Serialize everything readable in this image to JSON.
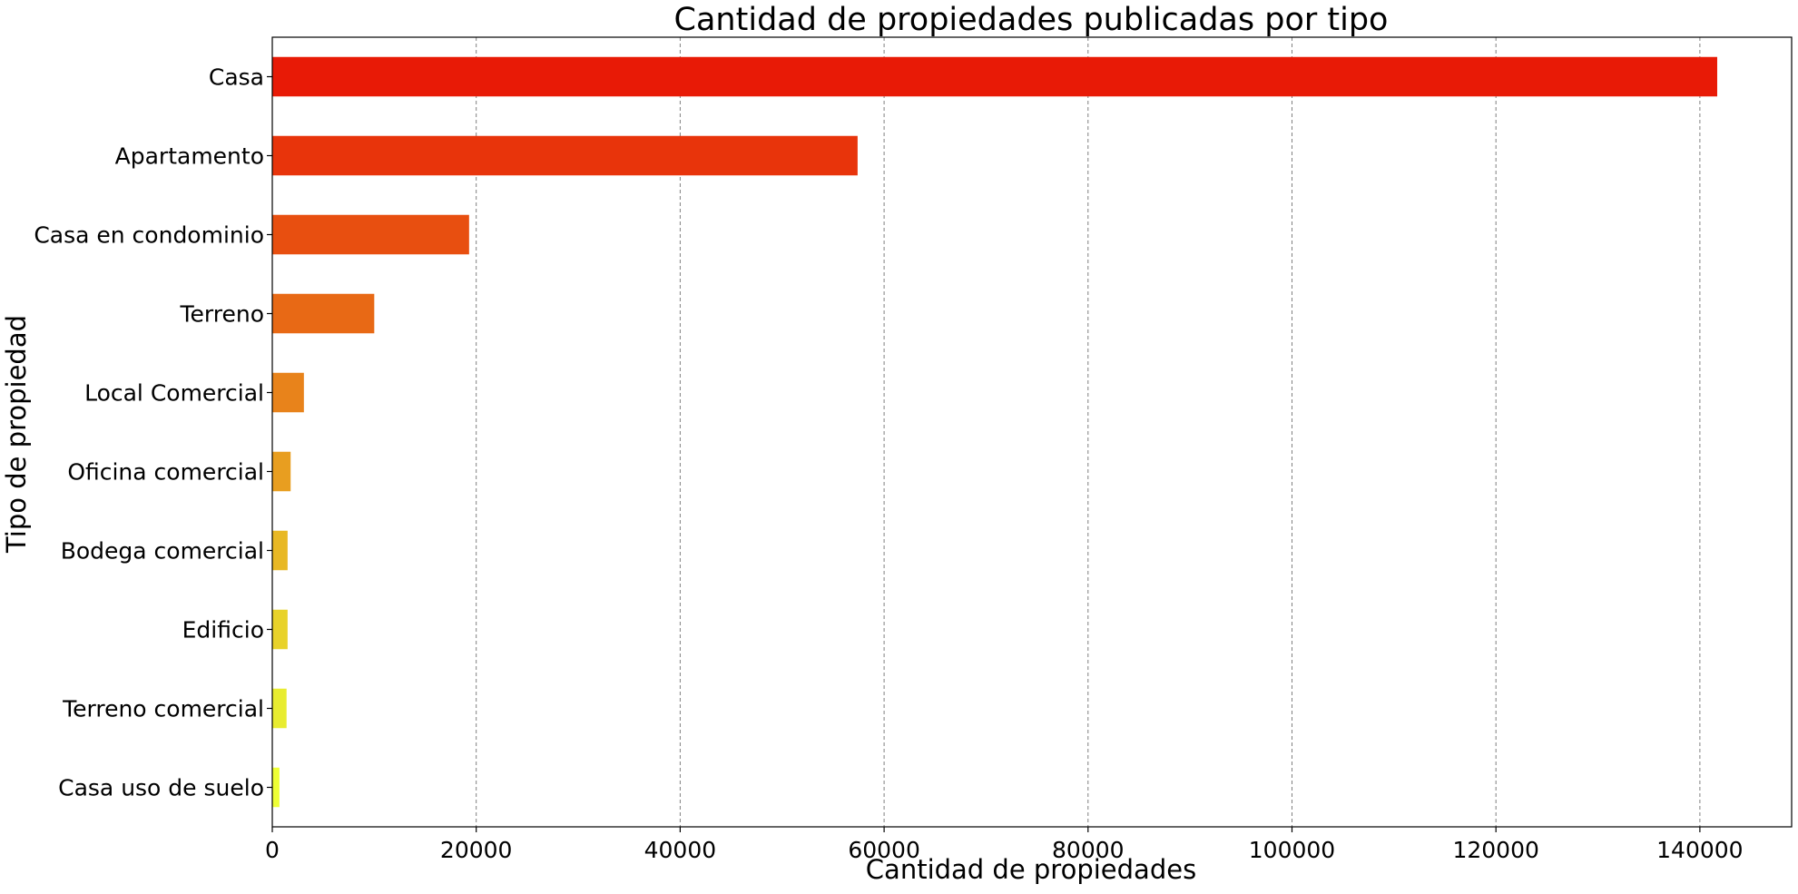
{
  "chart_data": {
    "type": "bar",
    "orientation": "horizontal",
    "title": "Cantidad de propiedades publicadas por tipo",
    "xlabel": "Cantidad de propiedades",
    "ylabel": "Tipo de propiedad",
    "xlim": [
      0,
      149000
    ],
    "xticks": [
      0,
      20000,
      40000,
      60000,
      80000,
      100000,
      120000,
      140000
    ],
    "xtick_labels": [
      "0",
      "20000",
      "40000",
      "60000",
      "80000",
      "100000",
      "120000",
      "140000"
    ],
    "grid": "x-axis vertical dashed lines",
    "legend": "none",
    "categories": [
      "Casa",
      "Apartamento",
      "Casa en condominio",
      "Terreno",
      "Local Comercial",
      "Oficina comercial",
      "Bodega comercial",
      "Edificio",
      "Terreno comercial",
      "Casa uso de suelo"
    ],
    "values": [
      141700,
      57400,
      19300,
      10000,
      3100,
      1800,
      1500,
      1500,
      1400,
      700
    ],
    "colors": [
      "#e81a06",
      "#e8340b",
      "#e84f10",
      "#e86915",
      "#e8831b",
      "#e89e20",
      "#e8b825",
      "#e8d22a",
      "#e8ec30",
      "#eeff35"
    ]
  }
}
